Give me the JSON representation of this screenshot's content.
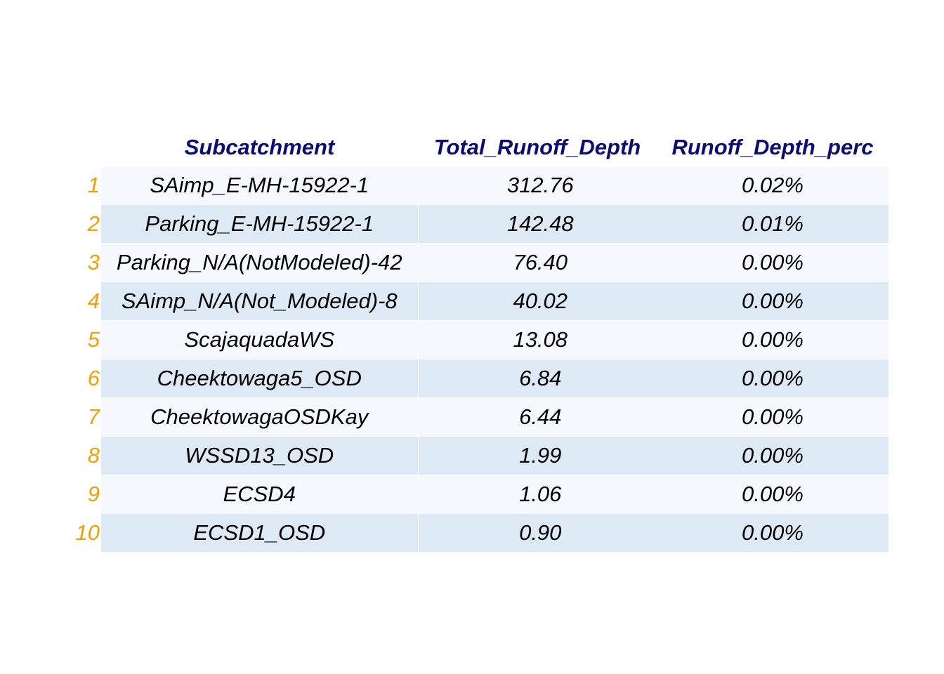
{
  "chart_data": {
    "type": "table",
    "columns": [
      "",
      "Subcatchment",
      "Total_Runoff_Depth",
      "Runoff_Depth_perc"
    ],
    "rows": [
      {
        "index": "1",
        "Subcatchment": "SAimp_E-MH-15922-1",
        "Total_Runoff_Depth": "312.76",
        "Runoff_Depth_perc": "0.02%"
      },
      {
        "index": "2",
        "Subcatchment": "Parking_E-MH-15922-1",
        "Total_Runoff_Depth": "142.48",
        "Runoff_Depth_perc": "0.01%"
      },
      {
        "index": "3",
        "Subcatchment": "Parking_N/A(NotModeled)-42",
        "Total_Runoff_Depth": "76.40",
        "Runoff_Depth_perc": "0.00%"
      },
      {
        "index": "4",
        "Subcatchment": "SAimp_N/A(Not_Modeled)-8",
        "Total_Runoff_Depth": "40.02",
        "Runoff_Depth_perc": "0.00%"
      },
      {
        "index": "5",
        "Subcatchment": "ScajaquadaWS",
        "Total_Runoff_Depth": "13.08",
        "Runoff_Depth_perc": "0.00%"
      },
      {
        "index": "6",
        "Subcatchment": "Cheektowaga5_OSD",
        "Total_Runoff_Depth": "6.84",
        "Runoff_Depth_perc": "0.00%"
      },
      {
        "index": "7",
        "Subcatchment": "CheektowagaOSDKay",
        "Total_Runoff_Depth": "6.44",
        "Runoff_Depth_perc": "0.00%"
      },
      {
        "index": "8",
        "Subcatchment": "WSSD13_OSD",
        "Total_Runoff_Depth": "1.99",
        "Runoff_Depth_perc": "0.00%"
      },
      {
        "index": "9",
        "Subcatchment": "ECSD4",
        "Total_Runoff_Depth": "1.06",
        "Runoff_Depth_perc": "0.00%"
      },
      {
        "index": "10",
        "Subcatchment": "ECSD1_OSD",
        "Total_Runoff_Depth": "0.90",
        "Runoff_Depth_perc": "0.00%"
      }
    ],
    "colors": {
      "header_text": "#0b0b7a",
      "row_number_text": "#f0a000",
      "row_band_light": "#f5f9fd",
      "row_band_dark": "#dde9f5"
    }
  }
}
